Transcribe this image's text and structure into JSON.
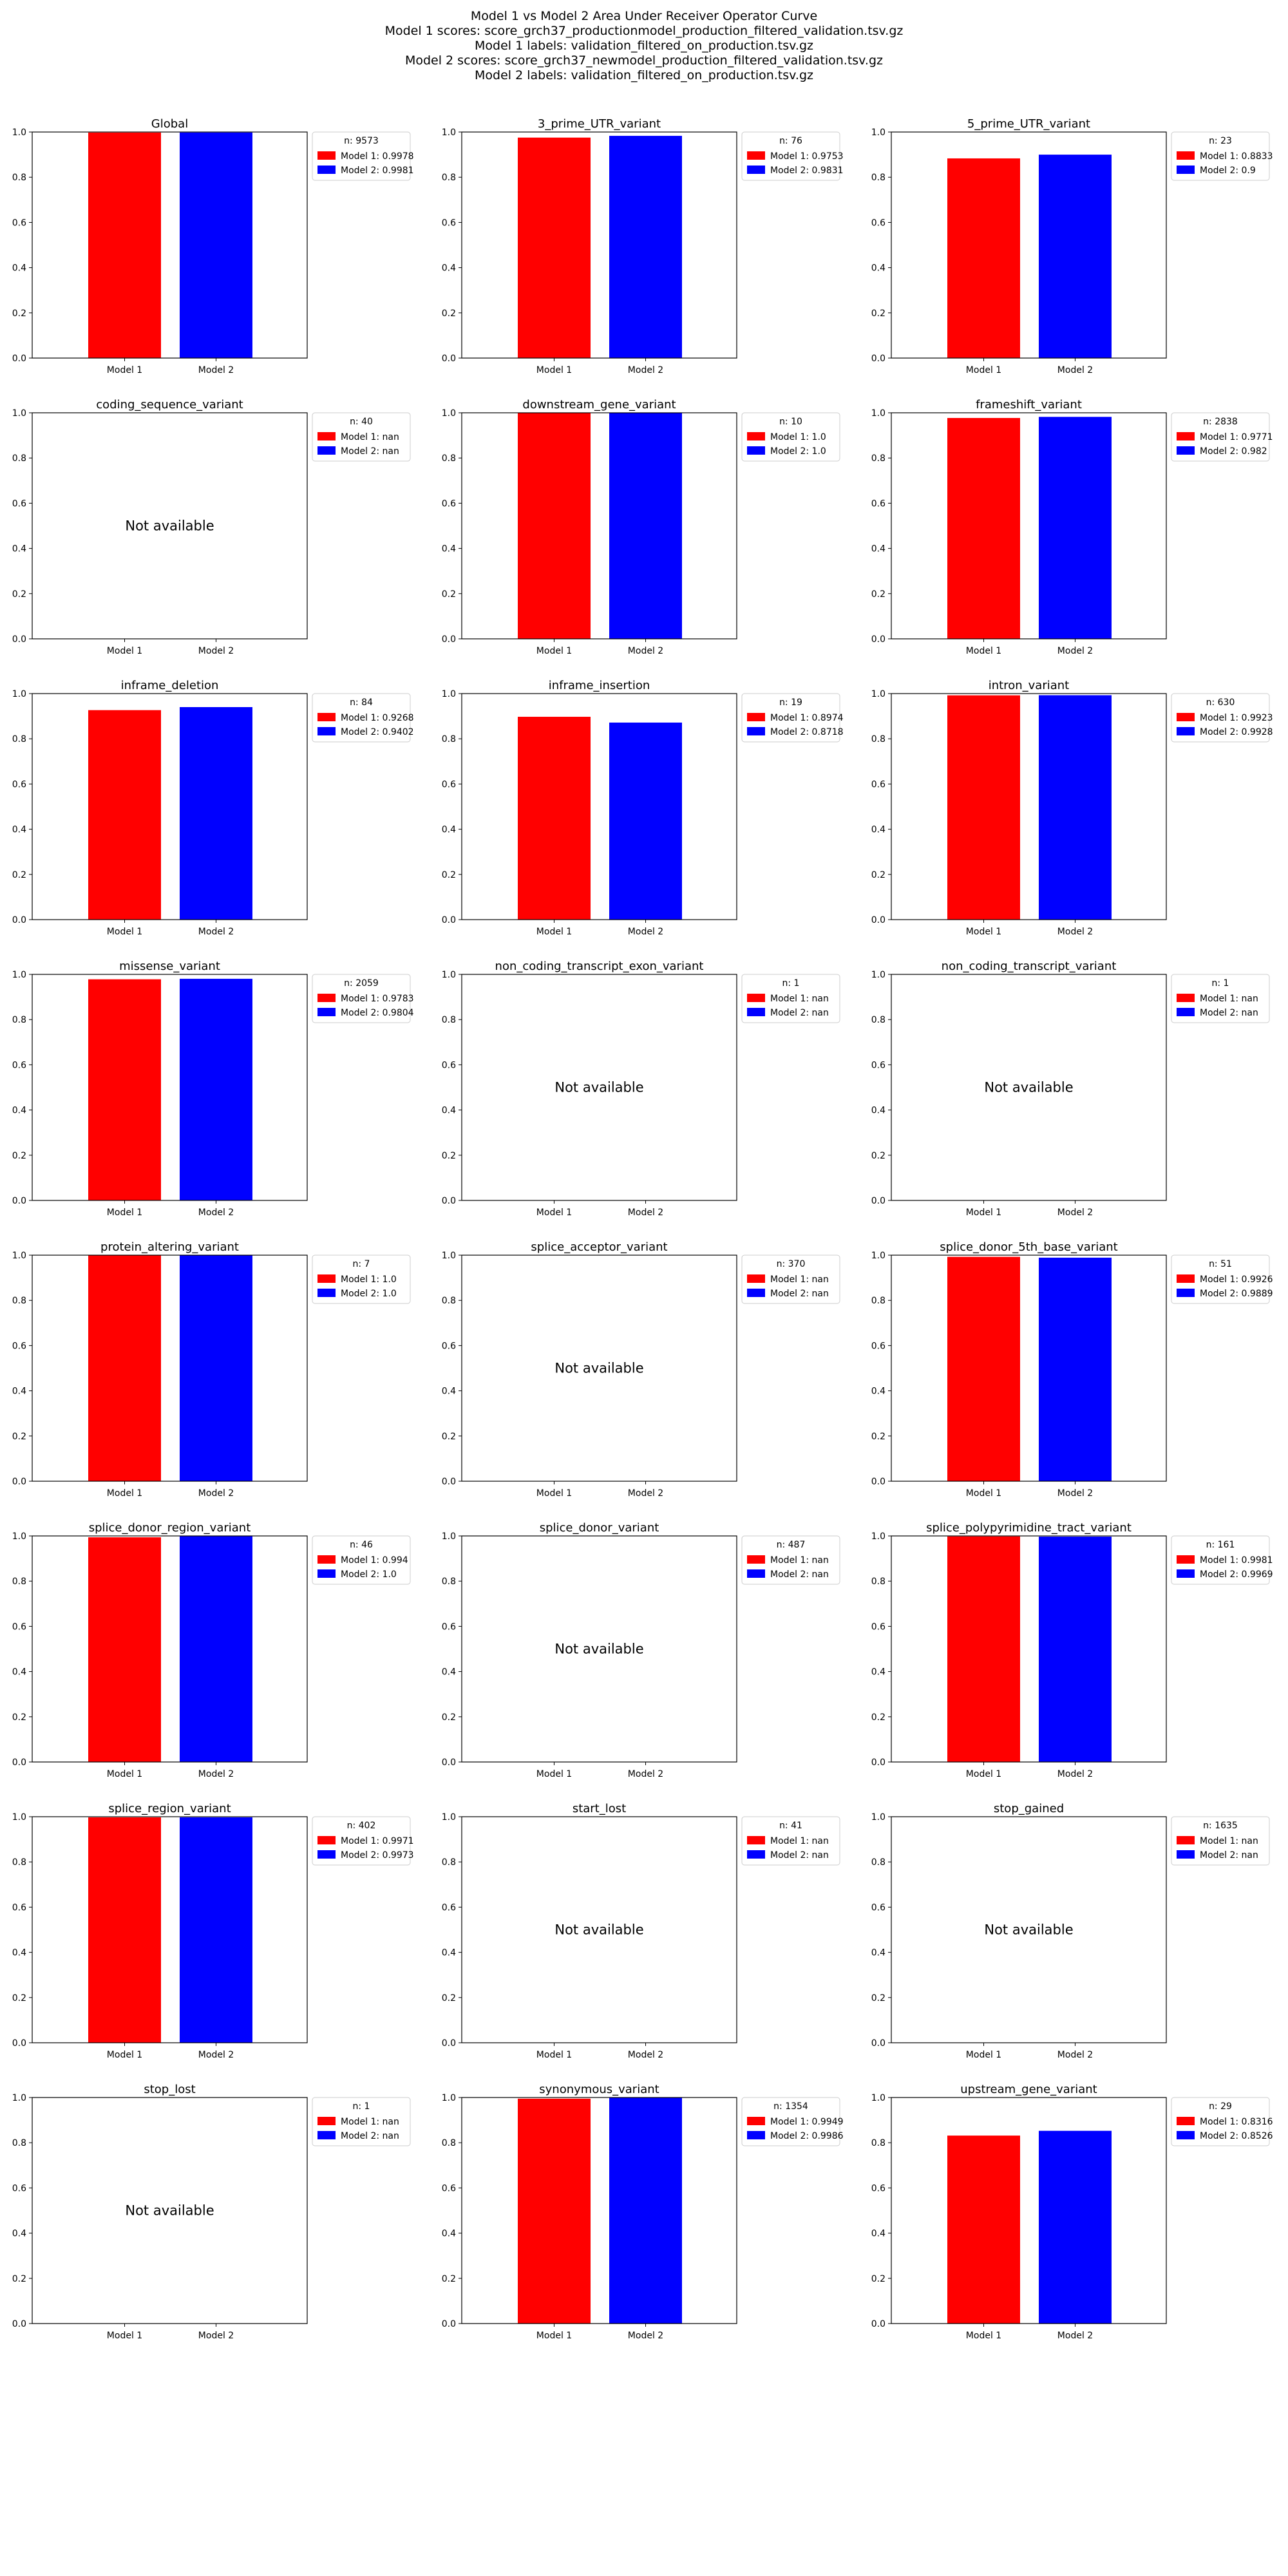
{
  "figure": {
    "suptitle": [
      "Model 1 vs Model 2 Area Under Receiver Operator Curve",
      "Model 1 scores: score_grch37_productionmodel_production_filtered_validation.tsv.gz",
      "Model 1 labels: validation_filtered_on_production.tsv.gz",
      "Model 2 scores: score_grch37_newmodel_production_filtered_validation.tsv.gz",
      "Model 2 labels: validation_filtered_on_production.tsv.gz"
    ],
    "colors": {
      "model1": "#ff0000",
      "model2": "#0000ff"
    },
    "not_available_text": "Not available"
  },
  "chart_data": [
    {
      "type": "bar",
      "title": "Global",
      "categories": [
        "Model 1",
        "Model 2"
      ],
      "values": [
        0.9978,
        0.9981
      ],
      "ylim": [
        0,
        1
      ],
      "yticks": [
        "0.0",
        "0.2",
        "0.4",
        "0.6",
        "0.8",
        "1.0"
      ],
      "legend": {
        "title": "n: 9573",
        "entries": [
          "Model 1: 0.9978",
          "Model 2: 0.9981"
        ]
      }
    },
    {
      "type": "bar",
      "title": "3_prime_UTR_variant",
      "categories": [
        "Model 1",
        "Model 2"
      ],
      "values": [
        0.9753,
        0.9831
      ],
      "ylim": [
        0,
        1
      ],
      "yticks": [
        "0.0",
        "0.2",
        "0.4",
        "0.6",
        "0.8",
        "1.0"
      ],
      "legend": {
        "title": "n: 76",
        "entries": [
          "Model 1: 0.9753",
          "Model 2: 0.9831"
        ]
      }
    },
    {
      "type": "bar",
      "title": "5_prime_UTR_variant",
      "categories": [
        "Model 1",
        "Model 2"
      ],
      "values": [
        0.8833,
        0.9
      ],
      "ylim": [
        0,
        1
      ],
      "yticks": [
        "0.0",
        "0.2",
        "0.4",
        "0.6",
        "0.8",
        "1.0"
      ],
      "legend": {
        "title": "n: 23",
        "entries": [
          "Model 1: 0.8833",
          "Model 2: 0.9"
        ]
      }
    },
    {
      "type": "bar",
      "title": "coding_sequence_variant",
      "categories": [
        "Model 1",
        "Model 2"
      ],
      "values": [
        null,
        null
      ],
      "ylim": [
        0,
        1
      ],
      "yticks": [
        "0.0",
        "0.2",
        "0.4",
        "0.6",
        "0.8",
        "1.0"
      ],
      "legend": {
        "title": "n: 40",
        "entries": [
          "Model 1: nan",
          "Model 2: nan"
        ]
      }
    },
    {
      "type": "bar",
      "title": "downstream_gene_variant",
      "categories": [
        "Model 1",
        "Model 2"
      ],
      "values": [
        1.0,
        1.0
      ],
      "ylim": [
        0,
        1
      ],
      "yticks": [
        "0.0",
        "0.2",
        "0.4",
        "0.6",
        "0.8",
        "1.0"
      ],
      "legend": {
        "title": "n: 10",
        "entries": [
          "Model 1: 1.0",
          "Model 2: 1.0"
        ]
      }
    },
    {
      "type": "bar",
      "title": "frameshift_variant",
      "categories": [
        "Model 1",
        "Model 2"
      ],
      "values": [
        0.9771,
        0.982
      ],
      "ylim": [
        0,
        1
      ],
      "yticks": [
        "0.0",
        "0.2",
        "0.4",
        "0.6",
        "0.8",
        "1.0"
      ],
      "legend": {
        "title": "n: 2838",
        "entries": [
          "Model 1: 0.9771",
          "Model 2: 0.982"
        ]
      }
    },
    {
      "type": "bar",
      "title": "inframe_deletion",
      "categories": [
        "Model 1",
        "Model 2"
      ],
      "values": [
        0.9268,
        0.9402
      ],
      "ylim": [
        0,
        1
      ],
      "yticks": [
        "0.0",
        "0.2",
        "0.4",
        "0.6",
        "0.8",
        "1.0"
      ],
      "legend": {
        "title": "n: 84",
        "entries": [
          "Model 1: 0.9268",
          "Model 2: 0.9402"
        ]
      }
    },
    {
      "type": "bar",
      "title": "inframe_insertion",
      "categories": [
        "Model 1",
        "Model 2"
      ],
      "values": [
        0.8974,
        0.8718
      ],
      "ylim": [
        0,
        1
      ],
      "yticks": [
        "0.0",
        "0.2",
        "0.4",
        "0.6",
        "0.8",
        "1.0"
      ],
      "legend": {
        "title": "n: 19",
        "entries": [
          "Model 1: 0.8974",
          "Model 2: 0.8718"
        ]
      }
    },
    {
      "type": "bar",
      "title": "intron_variant",
      "categories": [
        "Model 1",
        "Model 2"
      ],
      "values": [
        0.9923,
        0.9928
      ],
      "ylim": [
        0,
        1
      ],
      "yticks": [
        "0.0",
        "0.2",
        "0.4",
        "0.6",
        "0.8",
        "1.0"
      ],
      "legend": {
        "title": "n: 630",
        "entries": [
          "Model 1: 0.9923",
          "Model 2: 0.9928"
        ]
      }
    },
    {
      "type": "bar",
      "title": "missense_variant",
      "categories": [
        "Model 1",
        "Model 2"
      ],
      "values": [
        0.9783,
        0.9804
      ],
      "ylim": [
        0,
        1
      ],
      "yticks": [
        "0.0",
        "0.2",
        "0.4",
        "0.6",
        "0.8",
        "1.0"
      ],
      "legend": {
        "title": "n: 2059",
        "entries": [
          "Model 1: 0.9783",
          "Model 2: 0.9804"
        ]
      }
    },
    {
      "type": "bar",
      "title": "non_coding_transcript_exon_variant",
      "categories": [
        "Model 1",
        "Model 2"
      ],
      "values": [
        null,
        null
      ],
      "ylim": [
        0,
        1
      ],
      "yticks": [
        "0.0",
        "0.2",
        "0.4",
        "0.6",
        "0.8",
        "1.0"
      ],
      "legend": {
        "title": "n: 1",
        "entries": [
          "Model 1: nan",
          "Model 2: nan"
        ]
      }
    },
    {
      "type": "bar",
      "title": "non_coding_transcript_variant",
      "categories": [
        "Model 1",
        "Model 2"
      ],
      "values": [
        null,
        null
      ],
      "ylim": [
        0,
        1
      ],
      "yticks": [
        "0.0",
        "0.2",
        "0.4",
        "0.6",
        "0.8",
        "1.0"
      ],
      "legend": {
        "title": "n: 1",
        "entries": [
          "Model 1: nan",
          "Model 2: nan"
        ]
      }
    },
    {
      "type": "bar",
      "title": "protein_altering_variant",
      "categories": [
        "Model 1",
        "Model 2"
      ],
      "values": [
        1.0,
        1.0
      ],
      "ylim": [
        0,
        1
      ],
      "yticks": [
        "0.0",
        "0.2",
        "0.4",
        "0.6",
        "0.8",
        "1.0"
      ],
      "legend": {
        "title": "n: 7",
        "entries": [
          "Model 1: 1.0",
          "Model 2: 1.0"
        ]
      }
    },
    {
      "type": "bar",
      "title": "splice_acceptor_variant",
      "categories": [
        "Model 1",
        "Model 2"
      ],
      "values": [
        null,
        null
      ],
      "ylim": [
        0,
        1
      ],
      "yticks": [
        "0.0",
        "0.2",
        "0.4",
        "0.6",
        "0.8",
        "1.0"
      ],
      "legend": {
        "title": "n: 370",
        "entries": [
          "Model 1: nan",
          "Model 2: nan"
        ]
      }
    },
    {
      "type": "bar",
      "title": "splice_donor_5th_base_variant",
      "categories": [
        "Model 1",
        "Model 2"
      ],
      "values": [
        0.9926,
        0.9889
      ],
      "ylim": [
        0,
        1
      ],
      "yticks": [
        "0.0",
        "0.2",
        "0.4",
        "0.6",
        "0.8",
        "1.0"
      ],
      "legend": {
        "title": "n: 51",
        "entries": [
          "Model 1: 0.9926",
          "Model 2: 0.9889"
        ]
      }
    },
    {
      "type": "bar",
      "title": "splice_donor_region_variant",
      "categories": [
        "Model 1",
        "Model 2"
      ],
      "values": [
        0.994,
        1.0
      ],
      "ylim": [
        0,
        1
      ],
      "yticks": [
        "0.0",
        "0.2",
        "0.4",
        "0.6",
        "0.8",
        "1.0"
      ],
      "legend": {
        "title": "n: 46",
        "entries": [
          "Model 1: 0.994",
          "Model 2: 1.0"
        ]
      }
    },
    {
      "type": "bar",
      "title": "splice_donor_variant",
      "categories": [
        "Model 1",
        "Model 2"
      ],
      "values": [
        null,
        null
      ],
      "ylim": [
        0,
        1
      ],
      "yticks": [
        "0.0",
        "0.2",
        "0.4",
        "0.6",
        "0.8",
        "1.0"
      ],
      "legend": {
        "title": "n: 487",
        "entries": [
          "Model 1: nan",
          "Model 2: nan"
        ]
      }
    },
    {
      "type": "bar",
      "title": "splice_polypyrimidine_tract_variant",
      "categories": [
        "Model 1",
        "Model 2"
      ],
      "values": [
        0.9981,
        0.9969
      ],
      "ylim": [
        0,
        1
      ],
      "yticks": [
        "0.0",
        "0.2",
        "0.4",
        "0.6",
        "0.8",
        "1.0"
      ],
      "legend": {
        "title": "n: 161",
        "entries": [
          "Model 1: 0.9981",
          "Model 2: 0.9969"
        ]
      }
    },
    {
      "type": "bar",
      "title": "splice_region_variant",
      "categories": [
        "Model 1",
        "Model 2"
      ],
      "values": [
        0.9971,
        0.9973
      ],
      "ylim": [
        0,
        1
      ],
      "yticks": [
        "0.0",
        "0.2",
        "0.4",
        "0.6",
        "0.8",
        "1.0"
      ],
      "legend": {
        "title": "n: 402",
        "entries": [
          "Model 1: 0.9971",
          "Model 2: 0.9973"
        ]
      }
    },
    {
      "type": "bar",
      "title": "start_lost",
      "categories": [
        "Model 1",
        "Model 2"
      ],
      "values": [
        null,
        null
      ],
      "ylim": [
        0,
        1
      ],
      "yticks": [
        "0.0",
        "0.2",
        "0.4",
        "0.6",
        "0.8",
        "1.0"
      ],
      "legend": {
        "title": "n: 41",
        "entries": [
          "Model 1: nan",
          "Model 2: nan"
        ]
      }
    },
    {
      "type": "bar",
      "title": "stop_gained",
      "categories": [
        "Model 1",
        "Model 2"
      ],
      "values": [
        null,
        null
      ],
      "ylim": [
        0,
        1
      ],
      "yticks": [
        "0.0",
        "0.2",
        "0.4",
        "0.6",
        "0.8",
        "1.0"
      ],
      "legend": {
        "title": "n: 1635",
        "entries": [
          "Model 1: nan",
          "Model 2: nan"
        ]
      }
    },
    {
      "type": "bar",
      "title": "stop_lost",
      "categories": [
        "Model 1",
        "Model 2"
      ],
      "values": [
        null,
        null
      ],
      "ylim": [
        0,
        1
      ],
      "yticks": [
        "0.0",
        "0.2",
        "0.4",
        "0.6",
        "0.8",
        "1.0"
      ],
      "legend": {
        "title": "n: 1",
        "entries": [
          "Model 1: nan",
          "Model 2: nan"
        ]
      }
    },
    {
      "type": "bar",
      "title": "synonymous_variant",
      "categories": [
        "Model 1",
        "Model 2"
      ],
      "values": [
        0.9949,
        0.9986
      ],
      "ylim": [
        0,
        1
      ],
      "yticks": [
        "0.0",
        "0.2",
        "0.4",
        "0.6",
        "0.8",
        "1.0"
      ],
      "legend": {
        "title": "n: 1354",
        "entries": [
          "Model 1: 0.9949",
          "Model 2: 0.9986"
        ]
      }
    },
    {
      "type": "bar",
      "title": "upstream_gene_variant",
      "categories": [
        "Model 1",
        "Model 2"
      ],
      "values": [
        0.8316,
        0.8526
      ],
      "ylim": [
        0,
        1
      ],
      "yticks": [
        "0.0",
        "0.2",
        "0.4",
        "0.6",
        "0.8",
        "1.0"
      ],
      "legend": {
        "title": "n: 29",
        "entries": [
          "Model 1: 0.8316",
          "Model 2: 0.8526"
        ]
      }
    }
  ]
}
